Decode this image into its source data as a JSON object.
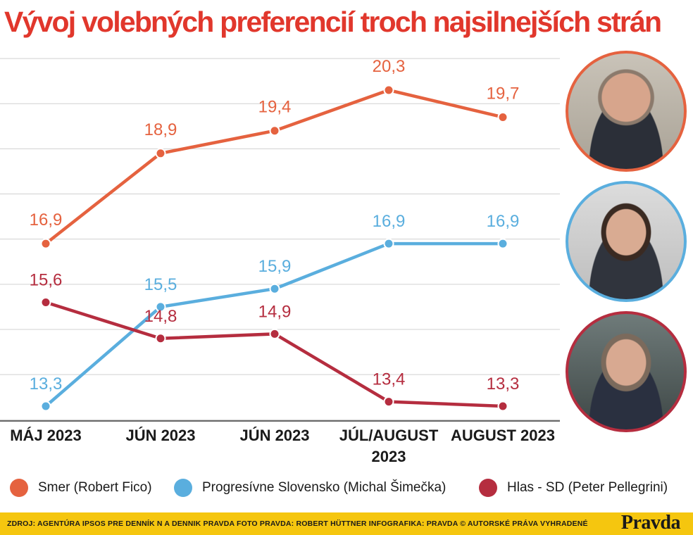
{
  "chart_data": {
    "type": "line",
    "title": "Vývoj volebných preferencií troch najsilnejších strán",
    "categories": [
      "MÁJ 2023",
      "JÚN 2023",
      "JÚN 2023",
      "JÚL/AUGUST 2023",
      "AUGUST 2023"
    ],
    "series": [
      {
        "name": "Smer (Robert Fico)",
        "color": "#e5623f",
        "values": [
          16.9,
          18.9,
          19.4,
          20.3,
          19.7
        ],
        "labels": [
          "16,9",
          "18,9",
          "19,4",
          "20,3",
          "19,7"
        ]
      },
      {
        "name": "Progresívne Slovensko (Michal Šimečka)",
        "color": "#5aaede",
        "values": [
          13.3,
          15.5,
          15.9,
          16.9,
          16.9
        ],
        "labels": [
          "13,3",
          "15,5",
          "15,9",
          "16,9",
          "16,9"
        ]
      },
      {
        "name": "Hlas - SD (Peter Pellegrini)",
        "color": "#b52d3f",
        "values": [
          15.6,
          14.8,
          14.9,
          13.4,
          13.3
        ],
        "labels": [
          "15,6",
          "14,8",
          "14,9",
          "13,4",
          "13,3"
        ]
      }
    ],
    "ylim": [
      12.9,
      21.0
    ],
    "grid": true,
    "legend": "bottom"
  },
  "footer": {
    "credits": "ZDROJ: AGENTÚRA IPSOS PRE DENNÍK N A DENNIK PRAVDA   FOTO PRAVDA: ROBERT HÜTTNER   INFOGRAFIKA: PRAVDA © AUTORSKÉ PRÁVA VYHRADENÉ",
    "logo": "Pravda"
  }
}
